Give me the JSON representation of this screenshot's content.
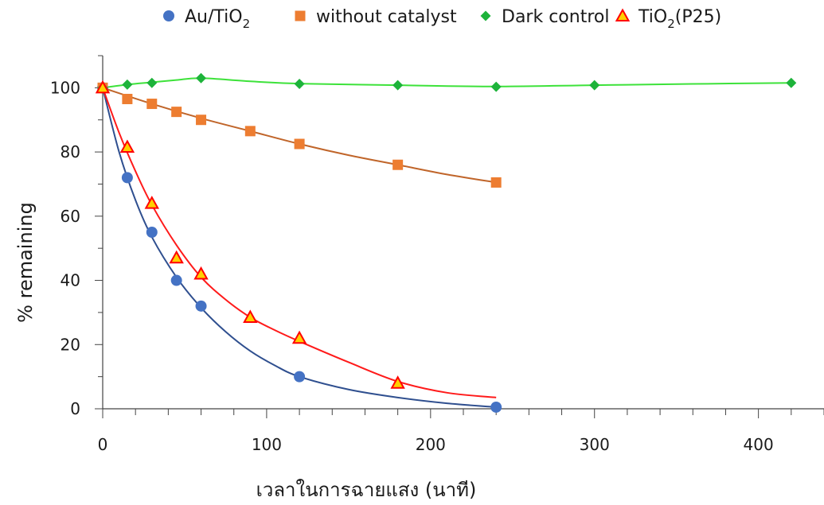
{
  "chart_data": {
    "type": "scatter",
    "title": "",
    "xlabel": "เวลาในการฉายแสง (นาที)",
    "ylabel": "% remaining",
    "xlim": [
      0,
      440
    ],
    "ylim": [
      0,
      110
    ],
    "x_ticks": [
      0,
      100,
      200,
      300,
      400
    ],
    "y_ticks": [
      0,
      20,
      40,
      60,
      80,
      100
    ],
    "x_minor_step": 20,
    "grid": false,
    "legend_position": "top",
    "series": [
      {
        "name": "Au/TiO",
        "name_subscript": "2",
        "name_suffix": "",
        "marker": "circle",
        "color": "#4472C4",
        "line_color": "#2F4F8F",
        "x": [
          0,
          15,
          30,
          45,
          60,
          120,
          240
        ],
        "y": [
          100,
          72,
          55,
          40,
          32,
          10,
          0.5
        ]
      },
      {
        "name": "without catalyst",
        "marker": "square",
        "color": "#ED7D31",
        "line_color": "#C0652A",
        "x": [
          0,
          15,
          30,
          45,
          60,
          90,
          120,
          180,
          240
        ],
        "y": [
          100,
          96.5,
          95,
          92.5,
          90,
          86.5,
          82.5,
          76,
          70.5
        ]
      },
      {
        "name": "Dark control",
        "marker": "diamond",
        "color": "#1DB33A",
        "line_color": "#3DE23A",
        "x": [
          0,
          15,
          30,
          60,
          120,
          180,
          240,
          300,
          420
        ],
        "y": [
          100,
          101,
          101.5,
          103,
          101.2,
          100.8,
          100.3,
          100.8,
          101.5
        ]
      },
      {
        "name": "TiO",
        "name_subscript": "2",
        "name_suffix": "(P25)",
        "marker": "triangle",
        "color": "#FF0000",
        "fill_color": "#FFD000",
        "line_color": "#FF1A1A",
        "x": [
          0,
          15,
          30,
          45,
          60,
          90,
          120,
          180
        ],
        "y": [
          100,
          81.5,
          64,
          47,
          42,
          28.5,
          22,
          8
        ]
      }
    ],
    "fit_curves": [
      {
        "series": "Au/TiO2",
        "x": [
          0,
          10,
          20,
          30,
          45,
          60,
          75,
          90,
          105,
          120,
          150,
          180,
          210,
          240
        ],
        "y": [
          100,
          80,
          65,
          53.5,
          41,
          31.5,
          24,
          18,
          13.5,
          10,
          6,
          3.5,
          1.7,
          0.5
        ]
      },
      {
        "series": "without catalyst",
        "x": [
          0,
          30,
          60,
          90,
          120,
          150,
          180,
          210,
          240
        ],
        "y": [
          100,
          95,
          90.5,
          86.5,
          82.5,
          79,
          76,
          73,
          70.5
        ]
      },
      {
        "series": "Dark control",
        "x": [
          0,
          15,
          30,
          45,
          60,
          90,
          120,
          180,
          240,
          300,
          360,
          420
        ],
        "y": [
          100,
          101,
          101.7,
          102.4,
          103,
          102,
          101.3,
          100.8,
          100.4,
          100.8,
          101.2,
          101.5
        ]
      },
      {
        "series": "TiO2(P25)",
        "x": [
          0,
          10,
          20,
          30,
          45,
          60,
          75,
          90,
          105,
          120,
          150,
          180,
          210,
          240
        ],
        "y": [
          100,
          86,
          74,
          63.5,
          51,
          41,
          34,
          28.5,
          24.5,
          21,
          14.5,
          8.5,
          5,
          3.5
        ]
      }
    ]
  }
}
